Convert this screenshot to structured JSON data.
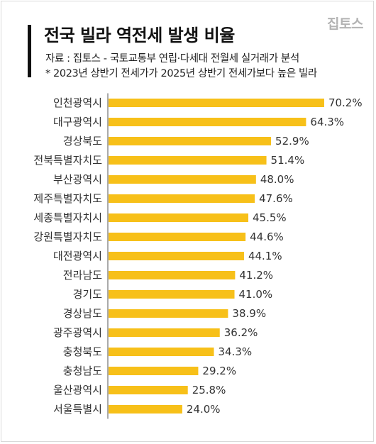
{
  "header": {
    "title": "전국 빌라 역전세 발생 비율",
    "brand": "집토스",
    "source": "자료 : 집토스 - 국토교통부 연립·다세대 전월세 실거래가 분석",
    "note": "* 2023년 상반기 전세가가 2025년 상반기 전세가보다 높은 빌라"
  },
  "colors": {
    "bar": "#F7C019",
    "accent": "#111111",
    "brand": "#B3B3B3"
  },
  "chart_data": {
    "type": "bar",
    "orientation": "horizontal",
    "categories": [
      "인천광역시",
      "대구광역시",
      "경상북도",
      "전북특별자치도",
      "부산광역시",
      "제주특별자치도",
      "세종특별자치시",
      "강원특별자치도",
      "대전광역시",
      "전라남도",
      "경기도",
      "경상남도",
      "광주광역시",
      "충청북도",
      "충청남도",
      "울산광역시",
      "서울특별시"
    ],
    "values": [
      70.2,
      64.3,
      52.9,
      51.4,
      48.0,
      47.6,
      45.5,
      44.6,
      44.1,
      41.2,
      41.0,
      38.9,
      36.2,
      34.3,
      29.2,
      25.8,
      24.0
    ],
    "value_labels": [
      "70.2%",
      "64.3%",
      "52.9%",
      "51.4%",
      "48.0%",
      "47.6%",
      "45.5%",
      "44.6%",
      "44.1%",
      "41.2%",
      "41.0%",
      "38.9%",
      "36.2%",
      "34.3%",
      "29.2%",
      "25.8%",
      "24.0%"
    ],
    "xlim": [
      0,
      100
    ],
    "grid": false,
    "legend": "none"
  }
}
